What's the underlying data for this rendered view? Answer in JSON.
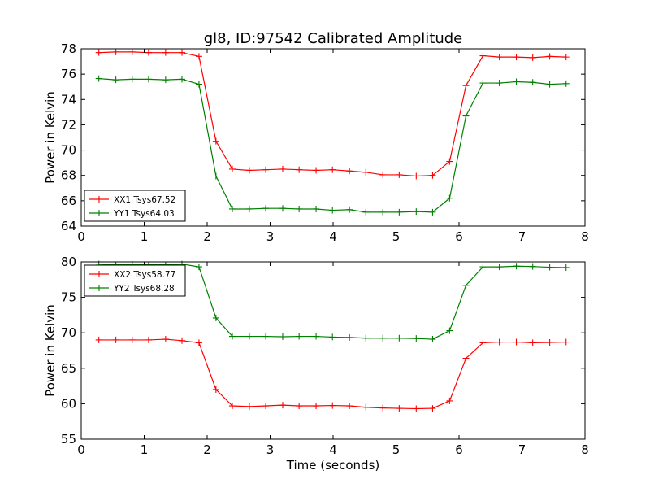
{
  "figure": {
    "title": "gl8, ID:97542 Calibrated Amplitude"
  },
  "chart_data": [
    {
      "type": "line",
      "title": "gl8, ID:97542 Calibrated Amplitude",
      "xlabel": "",
      "ylabel": "Power in Kelvin",
      "xlim": [
        0,
        8
      ],
      "ylim": [
        64,
        78
      ],
      "xticks": [
        "0",
        "1",
        "2",
        "3",
        "4",
        "5",
        "6",
        "7",
        "8"
      ],
      "yticks": [
        "64",
        "66",
        "68",
        "70",
        "72",
        "74",
        "76",
        "78"
      ],
      "grid": false,
      "legend_position": "lower-left",
      "x": [
        0.28,
        0.55,
        0.81,
        1.07,
        1.34,
        1.6,
        1.87,
        2.14,
        2.4,
        2.67,
        2.93,
        3.2,
        3.46,
        3.73,
        3.99,
        4.26,
        4.52,
        4.79,
        5.05,
        5.32,
        5.58,
        5.85,
        6.11,
        6.38,
        6.64,
        6.91,
        7.17,
        7.44,
        7.7
      ],
      "series": [
        {
          "name": "XX1 Tsys67.52",
          "color": "#ff0000",
          "values": [
            77.7,
            77.75,
            77.75,
            77.7,
            77.7,
            77.7,
            77.4,
            70.7,
            68.5,
            68.4,
            68.45,
            68.5,
            68.45,
            68.4,
            68.45,
            68.35,
            68.25,
            68.05,
            68.05,
            67.95,
            68.0,
            69.1,
            75.1,
            77.45,
            77.35,
            77.35,
            77.3,
            77.4,
            77.35
          ]
        },
        {
          "name": "YY1 Tsys64.03",
          "color": "#008000",
          "values": [
            75.65,
            75.55,
            75.6,
            75.6,
            75.55,
            75.6,
            75.2,
            67.95,
            65.35,
            65.35,
            65.4,
            65.4,
            65.35,
            65.35,
            65.25,
            65.3,
            65.1,
            65.1,
            65.1,
            65.15,
            65.1,
            66.2,
            72.7,
            75.3,
            75.3,
            75.4,
            75.35,
            75.2,
            75.25
          ]
        }
      ]
    },
    {
      "type": "line",
      "title": "",
      "xlabel": "Time (seconds)",
      "ylabel": "Power in Kelvin",
      "xlim": [
        0,
        8
      ],
      "ylim": [
        55,
        80
      ],
      "xticks": [
        "0",
        "1",
        "2",
        "3",
        "4",
        "5",
        "6",
        "7",
        "8"
      ],
      "yticks": [
        "55",
        "60",
        "65",
        "70",
        "75",
        "80"
      ],
      "grid": false,
      "legend_position": "upper-left",
      "x": [
        0.28,
        0.55,
        0.81,
        1.07,
        1.34,
        1.6,
        1.87,
        2.14,
        2.4,
        2.67,
        2.93,
        3.2,
        3.46,
        3.73,
        3.99,
        4.26,
        4.52,
        4.79,
        5.05,
        5.32,
        5.58,
        5.85,
        6.11,
        6.38,
        6.64,
        6.91,
        7.17,
        7.44,
        7.7
      ],
      "series": [
        {
          "name": "XX2 Tsys58.77",
          "color": "#ff0000",
          "values": [
            69.0,
            69.0,
            69.0,
            69.0,
            69.1,
            68.9,
            68.6,
            62.0,
            59.7,
            59.6,
            59.7,
            59.8,
            59.7,
            59.7,
            59.75,
            59.7,
            59.5,
            59.4,
            59.35,
            59.3,
            59.35,
            60.4,
            66.4,
            68.6,
            68.7,
            68.7,
            68.6,
            68.65,
            68.7
          ]
        },
        {
          "name": "YY2 Tsys68.28",
          "color": "#008000",
          "values": [
            79.7,
            79.6,
            79.65,
            79.6,
            79.6,
            79.7,
            79.3,
            72.1,
            69.5,
            69.5,
            69.5,
            69.45,
            69.5,
            69.5,
            69.4,
            69.35,
            69.25,
            69.25,
            69.25,
            69.2,
            69.1,
            70.3,
            76.7,
            79.3,
            79.3,
            79.4,
            79.35,
            79.25,
            79.2
          ]
        }
      ]
    }
  ]
}
